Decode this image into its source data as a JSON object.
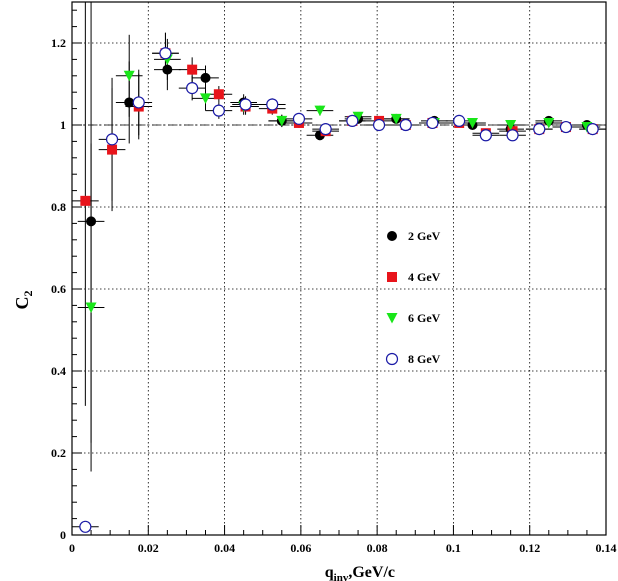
{
  "chart_data": {
    "type": "scatter",
    "title": "",
    "xlabel": "q",
    "xlabel_sub": "inv",
    "xlabel_suffix": ",GeV/c",
    "ylabel": "C",
    "ylabel_sub": "2",
    "xlim": [
      0,
      0.14
    ],
    "ylim": [
      0,
      1.3
    ],
    "xticks": [
      0,
      0.02,
      0.04,
      0.06,
      0.08,
      0.1,
      0.12,
      0.14
    ],
    "xtick_labels": [
      "0",
      "0.02",
      "0.04",
      "0.06",
      "0.08",
      "0.1",
      "0.12",
      "0.14"
    ],
    "yticks": [
      0,
      0.2,
      0.4,
      0.6,
      0.8,
      1.0,
      1.2
    ],
    "ytick_labels": [
      "0",
      "0.2",
      "0.4",
      "0.6",
      "0.8",
      "1",
      "1.2"
    ],
    "grid": true,
    "reference_line": 1.0,
    "legend_position": "center-right",
    "series": [
      {
        "name": "2 GeV",
        "marker": "filled-circle",
        "color": "#000000",
        "points": [
          [
            0.005,
            0.765,
            0.54
          ],
          [
            0.015,
            1.055,
            0.1
          ],
          [
            0.025,
            1.135,
            0.05
          ],
          [
            0.035,
            1.115,
            0.03
          ],
          [
            0.045,
            1.055,
            0.02
          ],
          [
            0.055,
            1.01,
            0.015
          ],
          [
            0.065,
            0.975,
            0.012
          ],
          [
            0.075,
            1.015,
            0.01
          ],
          [
            0.085,
            1.015,
            0.01
          ],
          [
            0.095,
            1.01,
            0.01
          ],
          [
            0.105,
            1.0,
            0.01
          ],
          [
            0.115,
            0.99,
            0.01
          ],
          [
            0.125,
            1.01,
            0.01
          ],
          [
            0.135,
            1.0,
            0.01
          ]
        ]
      },
      {
        "name": "4 GeV",
        "marker": "filled-square",
        "color": "#e8141b",
        "points": [
          [
            0.0035,
            0.815,
            0.5
          ],
          [
            0.0105,
            0.94,
            0.15
          ],
          [
            0.0175,
            1.045,
            0.08
          ],
          [
            0.0245,
            1.175,
            0.05
          ],
          [
            0.0315,
            1.135,
            0.03
          ],
          [
            0.0385,
            1.075,
            0.02
          ],
          [
            0.0455,
            1.045,
            0.02
          ],
          [
            0.0525,
            1.04,
            0.015
          ],
          [
            0.0595,
            1.005,
            0.012
          ],
          [
            0.0665,
            0.985,
            0.01
          ],
          [
            0.0735,
            1.01,
            0.01
          ],
          [
            0.0805,
            1.01,
            0.01
          ],
          [
            0.0875,
            1.0,
            0.01
          ],
          [
            0.0945,
            1.005,
            0.01
          ],
          [
            0.1015,
            1.005,
            0.01
          ],
          [
            0.1085,
            0.98,
            0.01
          ],
          [
            0.1155,
            0.985,
            0.01
          ],
          [
            0.1225,
            0.99,
            0.01
          ],
          [
            0.1295,
            0.995,
            0.01
          ],
          [
            0.1365,
            0.99,
            0.01
          ]
        ]
      },
      {
        "name": "6 GeV",
        "marker": "filled-triangle-down",
        "color": "#19e619",
        "points": [
          [
            0.005,
            0.555,
            0.4
          ],
          [
            0.015,
            1.12,
            0.1
          ],
          [
            0.025,
            1.16,
            0.05
          ],
          [
            0.035,
            1.065,
            0.03
          ],
          [
            0.045,
            1.045,
            0.02
          ],
          [
            0.055,
            1.01,
            0.015
          ],
          [
            0.065,
            1.035,
            0.012
          ],
          [
            0.075,
            1.02,
            0.01
          ],
          [
            0.085,
            1.015,
            0.01
          ],
          [
            0.095,
            1.005,
            0.01
          ],
          [
            0.105,
            1.005,
            0.01
          ],
          [
            0.115,
            1.0,
            0.01
          ],
          [
            0.125,
            1.005,
            0.01
          ],
          [
            0.135,
            0.995,
            0.01
          ]
        ]
      },
      {
        "name": "8 GeV",
        "marker": "open-circle",
        "color": "#1a1aa6",
        "points": [
          [
            0.0035,
            0.02,
            0.0
          ],
          [
            0.0105,
            0.965,
            0.15
          ],
          [
            0.0175,
            1.055,
            0.08
          ],
          [
            0.0245,
            1.175,
            0.05
          ],
          [
            0.0315,
            1.09,
            0.03
          ],
          [
            0.0385,
            1.035,
            0.02
          ],
          [
            0.0455,
            1.05,
            0.02
          ],
          [
            0.0525,
            1.05,
            0.015
          ],
          [
            0.0595,
            1.015,
            0.012
          ],
          [
            0.0665,
            0.99,
            0.01
          ],
          [
            0.0735,
            1.01,
            0.01
          ],
          [
            0.0805,
            1.0,
            0.01
          ],
          [
            0.0875,
            1.0,
            0.01
          ],
          [
            0.0945,
            1.005,
            0.01
          ],
          [
            0.1015,
            1.01,
            0.01
          ],
          [
            0.1085,
            0.975,
            0.01
          ],
          [
            0.1155,
            0.975,
            0.01
          ],
          [
            0.1225,
            0.99,
            0.01
          ],
          [
            0.1295,
            0.995,
            0.01
          ],
          [
            0.1365,
            0.99,
            0.01
          ]
        ]
      }
    ]
  }
}
